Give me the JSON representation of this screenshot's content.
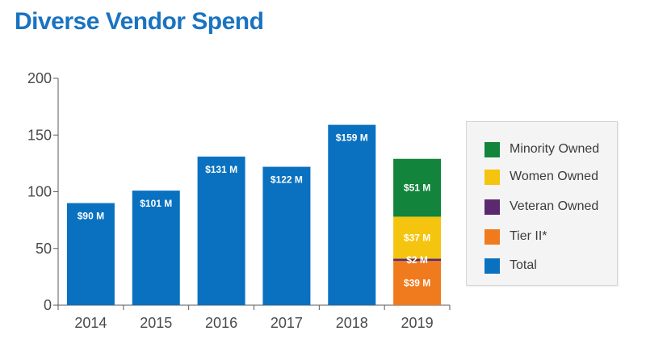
{
  "title": "Diverse Vendor Spend",
  "colors": {
    "Minority Owned": "#12843b",
    "Women Owned": "#f5c40f",
    "Veteran Owned": "#5b2a6e",
    "Tier II*": "#f07b1f",
    "Total": "#0971c0"
  },
  "legend": [
    {
      "label": "Minority Owned"
    },
    {
      "label": "Women Owned"
    },
    {
      "label": "Veteran Owned"
    },
    {
      "label": "Tier II*"
    },
    {
      "label": "Total"
    }
  ],
  "chart_data": {
    "type": "bar",
    "stacked": true,
    "title": "Diverse Vendor Spend",
    "xlabel": "",
    "ylabel": "",
    "ylim": [
      0,
      200
    ],
    "yticks": [
      0,
      50,
      100,
      150,
      200
    ],
    "categories": [
      "2014",
      "2015",
      "2016",
      "2017",
      "2018",
      "2019"
    ],
    "series": [
      {
        "name": "Total",
        "values": [
          90,
          101,
          131,
          122,
          159,
          null
        ],
        "labels": [
          "$90 M",
          "$101 M",
          "$131 M",
          "$122 M",
          "$159 M",
          ""
        ]
      },
      {
        "name": "Tier II*",
        "values": [
          null,
          null,
          null,
          null,
          null,
          39
        ],
        "labels": [
          "",
          "",
          "",
          "",
          "",
          "$39 M"
        ]
      },
      {
        "name": "Veteran Owned",
        "values": [
          null,
          null,
          null,
          null,
          null,
          2
        ],
        "labels": [
          "",
          "",
          "",
          "",
          "",
          "$2 M"
        ]
      },
      {
        "name": "Women Owned",
        "values": [
          null,
          null,
          null,
          null,
          null,
          37
        ],
        "labels": [
          "",
          "",
          "",
          "",
          "",
          "$37 M"
        ]
      },
      {
        "name": "Minority Owned",
        "values": [
          null,
          null,
          null,
          null,
          null,
          51
        ],
        "labels": [
          "",
          "",
          "",
          "",
          "",
          "$51 M"
        ]
      }
    ],
    "grid": false,
    "legend_position": "right"
  }
}
